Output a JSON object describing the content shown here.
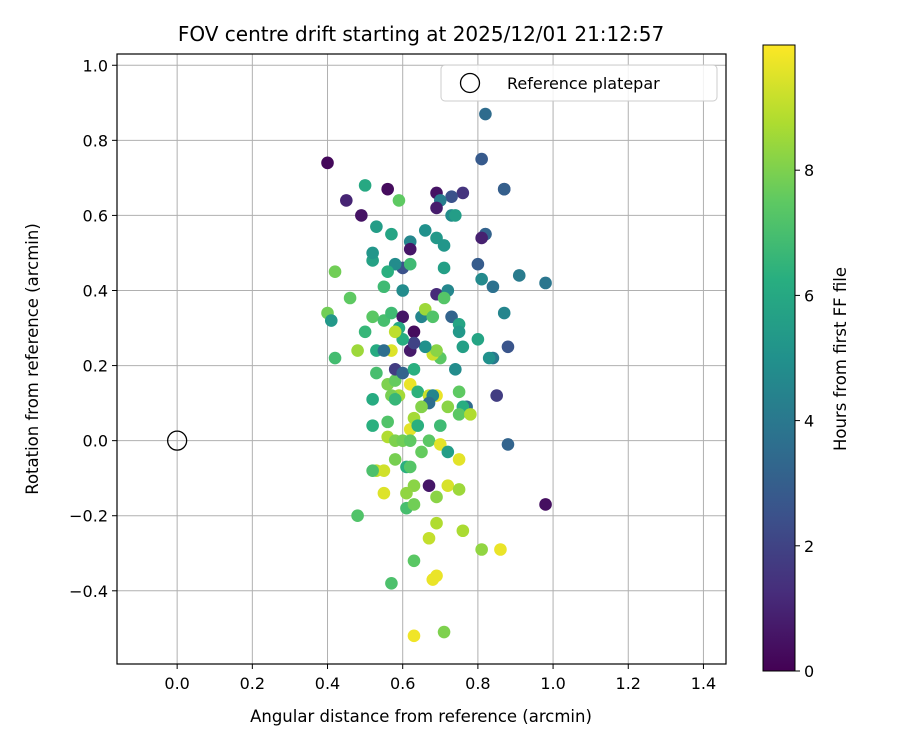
{
  "chart_data": {
    "type": "scatter",
    "title": "FOV centre drift starting at 2025/12/01 21:12:57",
    "xlabel": "Angular distance from reference (arcmin)",
    "ylabel": "Rotation from reference (arcmin)",
    "colorbar_label": "Hours from first FF file",
    "colormap": "viridis",
    "xlim": [
      -0.16,
      1.46
    ],
    "ylim": [
      -0.595,
      1.03
    ],
    "clim": [
      0,
      10
    ],
    "x_ticks": [
      0.0,
      0.2,
      0.4,
      0.6,
      0.8,
      1.0,
      1.2,
      1.4
    ],
    "x_tick_labels": [
      "0.0",
      "0.2",
      "0.4",
      "0.6",
      "0.8",
      "1.0",
      "1.2",
      "1.4"
    ],
    "y_ticks": [
      -0.4,
      -0.2,
      0.0,
      0.2,
      0.4,
      0.6,
      0.8,
      1.0
    ],
    "y_tick_labels": [
      "−0.4",
      "−0.2",
      "0.0",
      "0.2",
      "0.4",
      "0.6",
      "0.8",
      "1.0"
    ],
    "colorbar_ticks": [
      0,
      2,
      4,
      6,
      8
    ],
    "colorbar_tick_labels": [
      "0",
      "2",
      "4",
      "6",
      "8"
    ],
    "grid": true,
    "legend": {
      "location": "upper right",
      "entries": [
        "Reference platepar"
      ]
    },
    "reference_point": {
      "label": "Reference platepar",
      "x": 0.0,
      "y": 0.0
    },
    "series": [
      {
        "name": "FOV centre drift",
        "points": [
          {
            "x": 0.4,
            "y": 0.74,
            "hours": 0.2
          },
          {
            "x": 0.45,
            "y": 0.64,
            "hours": 1.0
          },
          {
            "x": 0.49,
            "y": 0.6,
            "hours": 0.5
          },
          {
            "x": 0.56,
            "y": 0.67,
            "hours": 0.3
          },
          {
            "x": 0.69,
            "y": 0.66,
            "hours": 0.5
          },
          {
            "x": 0.76,
            "y": 0.66,
            "hours": 1.5
          },
          {
            "x": 0.73,
            "y": 0.65,
            "hours": 2.5
          },
          {
            "x": 0.7,
            "y": 0.64,
            "hours": 4.2
          },
          {
            "x": 0.69,
            "y": 0.62,
            "hours": 0.8
          },
          {
            "x": 0.73,
            "y": 0.6,
            "hours": 4.8
          },
          {
            "x": 0.74,
            "y": 0.6,
            "hours": 5.5
          },
          {
            "x": 0.82,
            "y": 0.87,
            "hours": 3.5
          },
          {
            "x": 0.81,
            "y": 0.75,
            "hours": 2.8
          },
          {
            "x": 0.87,
            "y": 0.67,
            "hours": 2.2
          },
          {
            "x": 0.87,
            "y": 0.67,
            "hours": 3.0
          },
          {
            "x": 0.82,
            "y": 0.55,
            "hours": 2.5
          },
          {
            "x": 0.82,
            "y": 0.55,
            "hours": 3.2
          },
          {
            "x": 0.81,
            "y": 0.54,
            "hours": 0.9
          },
          {
            "x": 0.8,
            "y": 0.47,
            "hours": 2.9
          },
          {
            "x": 0.81,
            "y": 0.43,
            "hours": 4.7
          },
          {
            "x": 0.84,
            "y": 0.41,
            "hours": 3.7
          },
          {
            "x": 0.91,
            "y": 0.44,
            "hours": 4.1
          },
          {
            "x": 0.98,
            "y": 0.42,
            "hours": 3.9
          },
          {
            "x": 0.87,
            "y": 0.34,
            "hours": 4.5
          },
          {
            "x": 0.88,
            "y": 0.25,
            "hours": 2.6
          },
          {
            "x": 0.84,
            "y": 0.22,
            "hours": 4.0
          },
          {
            "x": 0.83,
            "y": 0.22,
            "hours": 5.0
          },
          {
            "x": 0.8,
            "y": 0.27,
            "hours": 5.8
          },
          {
            "x": 0.85,
            "y": 0.12,
            "hours": 1.8
          },
          {
            "x": 0.77,
            "y": 0.09,
            "hours": 3.5
          },
          {
            "x": 0.88,
            "y": -0.01,
            "hours": 3.2
          },
          {
            "x": 0.98,
            "y": -0.17,
            "hours": 0.4
          },
          {
            "x": 0.5,
            "y": 0.68,
            "hours": 6.0
          },
          {
            "x": 0.53,
            "y": 0.57,
            "hours": 5.5
          },
          {
            "x": 0.57,
            "y": 0.55,
            "hours": 5.8
          },
          {
            "x": 0.62,
            "y": 0.53,
            "hours": 4.6
          },
          {
            "x": 0.62,
            "y": 0.51,
            "hours": 0.6
          },
          {
            "x": 0.66,
            "y": 0.56,
            "hours": 5.0
          },
          {
            "x": 0.69,
            "y": 0.54,
            "hours": 5.3
          },
          {
            "x": 0.71,
            "y": 0.52,
            "hours": 5.2
          },
          {
            "x": 0.71,
            "y": 0.46,
            "hours": 5.6
          },
          {
            "x": 0.6,
            "y": 0.46,
            "hours": 2.5
          },
          {
            "x": 0.58,
            "y": 0.47,
            "hours": 4.8
          },
          {
            "x": 0.62,
            "y": 0.47,
            "hours": 6.8
          },
          {
            "x": 0.56,
            "y": 0.45,
            "hours": 6.3
          },
          {
            "x": 0.52,
            "y": 0.48,
            "hours": 5.7
          },
          {
            "x": 0.52,
            "y": 0.5,
            "hours": 5.2
          },
          {
            "x": 0.59,
            "y": 0.64,
            "hours": 7.5
          },
          {
            "x": 0.42,
            "y": 0.45,
            "hours": 7.8
          },
          {
            "x": 0.46,
            "y": 0.38,
            "hours": 7.5
          },
          {
            "x": 0.4,
            "y": 0.34,
            "hours": 7.8
          },
          {
            "x": 0.41,
            "y": 0.32,
            "hours": 5.3
          },
          {
            "x": 0.42,
            "y": 0.22,
            "hours": 6.9
          },
          {
            "x": 0.48,
            "y": 0.24,
            "hours": 8.5
          },
          {
            "x": 0.5,
            "y": 0.29,
            "hours": 6.6
          },
          {
            "x": 0.52,
            "y": 0.33,
            "hours": 7.4
          },
          {
            "x": 0.55,
            "y": 0.41,
            "hours": 6.8
          },
          {
            "x": 0.55,
            "y": 0.32,
            "hours": 7.0
          },
          {
            "x": 0.57,
            "y": 0.34,
            "hours": 6.8
          },
          {
            "x": 0.6,
            "y": 0.4,
            "hours": 4.8
          },
          {
            "x": 0.6,
            "y": 0.33,
            "hours": 0.6
          },
          {
            "x": 0.63,
            "y": 0.29,
            "hours": 0.3
          },
          {
            "x": 0.62,
            "y": 0.24,
            "hours": 0.7
          },
          {
            "x": 0.65,
            "y": 0.33,
            "hours": 4.5
          },
          {
            "x": 0.66,
            "y": 0.35,
            "hours": 8.5
          },
          {
            "x": 0.68,
            "y": 0.33,
            "hours": 7.2
          },
          {
            "x": 0.69,
            "y": 0.39,
            "hours": 1.2
          },
          {
            "x": 0.72,
            "y": 0.4,
            "hours": 4.6
          },
          {
            "x": 0.73,
            "y": 0.33,
            "hours": 3.2
          },
          {
            "x": 0.75,
            "y": 0.31,
            "hours": 5.8
          },
          {
            "x": 0.75,
            "y": 0.29,
            "hours": 5.3
          },
          {
            "x": 0.76,
            "y": 0.25,
            "hours": 5.6
          },
          {
            "x": 0.71,
            "y": 0.38,
            "hours": 7.3
          },
          {
            "x": 0.74,
            "y": 0.19,
            "hours": 4.8
          },
          {
            "x": 0.7,
            "y": 0.22,
            "hours": 7.4
          },
          {
            "x": 0.68,
            "y": 0.23,
            "hours": 9.2
          },
          {
            "x": 0.69,
            "y": 0.24,
            "hours": 8.2
          },
          {
            "x": 0.66,
            "y": 0.25,
            "hours": 5.0
          },
          {
            "x": 0.63,
            "y": 0.26,
            "hours": 2.0
          },
          {
            "x": 0.6,
            "y": 0.27,
            "hours": 6.2
          },
          {
            "x": 0.59,
            "y": 0.3,
            "hours": 6.0
          },
          {
            "x": 0.58,
            "y": 0.29,
            "hours": 9.0
          },
          {
            "x": 0.57,
            "y": 0.24,
            "hours": 9.5
          },
          {
            "x": 0.53,
            "y": 0.24,
            "hours": 6.1
          },
          {
            "x": 0.55,
            "y": 0.24,
            "hours": 3.6
          },
          {
            "x": 0.53,
            "y": 0.18,
            "hours": 7.0
          },
          {
            "x": 0.56,
            "y": 0.15,
            "hours": 8.0
          },
          {
            "x": 0.58,
            "y": 0.16,
            "hours": 7.6
          },
          {
            "x": 0.58,
            "y": 0.19,
            "hours": 1.8
          },
          {
            "x": 0.6,
            "y": 0.18,
            "hours": 3.2
          },
          {
            "x": 0.62,
            "y": 0.15,
            "hours": 9.7
          },
          {
            "x": 0.63,
            "y": 0.19,
            "hours": 6.3
          },
          {
            "x": 0.59,
            "y": 0.12,
            "hours": 8.6
          },
          {
            "x": 0.57,
            "y": 0.12,
            "hours": 7.9
          },
          {
            "x": 0.58,
            "y": 0.11,
            "hours": 6.6
          },
          {
            "x": 0.64,
            "y": 0.13,
            "hours": 6.4
          },
          {
            "x": 0.67,
            "y": 0.12,
            "hours": 9.2
          },
          {
            "x": 0.69,
            "y": 0.12,
            "hours": 9.7
          },
          {
            "x": 0.68,
            "y": 0.12,
            "hours": 4.5
          },
          {
            "x": 0.67,
            "y": 0.1,
            "hours": 3.6
          },
          {
            "x": 0.65,
            "y": 0.09,
            "hours": 8.1
          },
          {
            "x": 0.72,
            "y": 0.09,
            "hours": 8.2
          },
          {
            "x": 0.75,
            "y": 0.13,
            "hours": 7.5
          },
          {
            "x": 0.76,
            "y": 0.09,
            "hours": 6.2
          },
          {
            "x": 0.75,
            "y": 0.07,
            "hours": 7.4
          },
          {
            "x": 0.78,
            "y": 0.07,
            "hours": 8.8
          },
          {
            "x": 0.52,
            "y": 0.11,
            "hours": 6.1
          },
          {
            "x": 0.52,
            "y": 0.04,
            "hours": 6.3
          },
          {
            "x": 0.56,
            "y": 0.05,
            "hours": 7.2
          },
          {
            "x": 0.56,
            "y": 0.01,
            "hours": 8.8
          },
          {
            "x": 0.58,
            "y": 0.0,
            "hours": 8.0
          },
          {
            "x": 0.6,
            "y": 0.0,
            "hours": 7.8
          },
          {
            "x": 0.62,
            "y": 0.03,
            "hours": 9.6
          },
          {
            "x": 0.63,
            "y": 0.06,
            "hours": 8.6
          },
          {
            "x": 0.64,
            "y": 0.04,
            "hours": 6.3
          },
          {
            "x": 0.62,
            "y": 0.0,
            "hours": 7.5
          },
          {
            "x": 0.65,
            "y": -0.03,
            "hours": 7.6
          },
          {
            "x": 0.67,
            "y": 0.0,
            "hours": 7.4
          },
          {
            "x": 0.7,
            "y": 0.04,
            "hours": 6.8
          },
          {
            "x": 0.7,
            "y": -0.01,
            "hours": 9.6
          },
          {
            "x": 0.72,
            "y": -0.03,
            "hours": 5.5
          },
          {
            "x": 0.75,
            "y": -0.05,
            "hours": 9.6
          },
          {
            "x": 0.58,
            "y": -0.05,
            "hours": 7.9
          },
          {
            "x": 0.61,
            "y": -0.07,
            "hours": 6.3
          },
          {
            "x": 0.62,
            "y": -0.07,
            "hours": 7.3
          },
          {
            "x": 0.53,
            "y": -0.08,
            "hours": 9.0
          },
          {
            "x": 0.55,
            "y": -0.08,
            "hours": 9.3
          },
          {
            "x": 0.52,
            "y": -0.08,
            "hours": 7.1
          },
          {
            "x": 0.63,
            "y": -0.12,
            "hours": 8.2
          },
          {
            "x": 0.67,
            "y": -0.12,
            "hours": 0.6
          },
          {
            "x": 0.72,
            "y": -0.12,
            "hours": 9.4
          },
          {
            "x": 0.75,
            "y": -0.13,
            "hours": 8.5
          },
          {
            "x": 0.55,
            "y": -0.14,
            "hours": 9.5
          },
          {
            "x": 0.61,
            "y": -0.14,
            "hours": 8.3
          },
          {
            "x": 0.69,
            "y": -0.15,
            "hours": 8.2
          },
          {
            "x": 0.48,
            "y": -0.2,
            "hours": 7.2
          },
          {
            "x": 0.61,
            "y": -0.18,
            "hours": 7.0
          },
          {
            "x": 0.63,
            "y": -0.17,
            "hours": 7.8
          },
          {
            "x": 0.69,
            "y": -0.22,
            "hours": 8.8
          },
          {
            "x": 0.76,
            "y": -0.24,
            "hours": 8.7
          },
          {
            "x": 0.67,
            "y": -0.26,
            "hours": 9.1
          },
          {
            "x": 0.81,
            "y": -0.29,
            "hours": 8.3
          },
          {
            "x": 0.86,
            "y": -0.29,
            "hours": 9.7
          },
          {
            "x": 0.63,
            "y": -0.32,
            "hours": 7.4
          },
          {
            "x": 0.69,
            "y": -0.36,
            "hours": 9.7
          },
          {
            "x": 0.68,
            "y": -0.37,
            "hours": 9.7
          },
          {
            "x": 0.57,
            "y": -0.38,
            "hours": 7.1
          },
          {
            "x": 0.63,
            "y": -0.52,
            "hours": 9.8
          },
          {
            "x": 0.71,
            "y": -0.51,
            "hours": 8.0
          }
        ]
      }
    ]
  }
}
